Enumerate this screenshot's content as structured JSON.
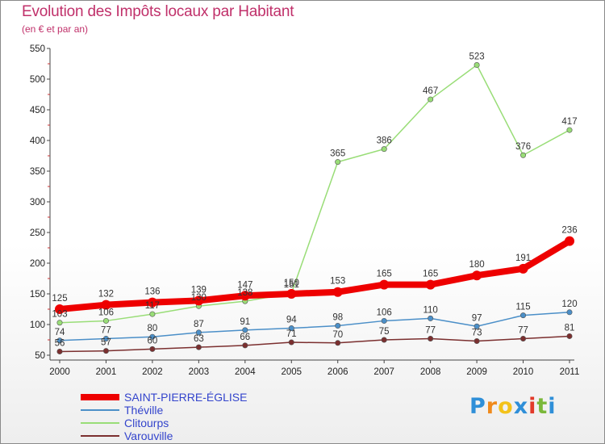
{
  "title": "Evolution des Impôts locaux par Habitant",
  "subtitle": "(en € et par an)",
  "logo": {
    "letters": [
      "P",
      "r",
      "o",
      "x",
      "i",
      "t",
      "i"
    ],
    "colors": [
      "#2f8fd8",
      "#f08a1c",
      "#f3c21a",
      "#2f8fd8",
      "#e23a2a",
      "#7ab83a",
      "#2f8fd8"
    ]
  },
  "chart_data": {
    "type": "line",
    "title": "Evolution des Impôts locaux par Habitant",
    "subtitle": "(en € et par an)",
    "xlabel": "",
    "ylabel": "",
    "categories": [
      "2000",
      "2001",
      "2002",
      "2003",
      "2004",
      "2005",
      "2006",
      "2007",
      "2008",
      "2009",
      "2010",
      "2011"
    ],
    "ylim": [
      50,
      550
    ],
    "yticks": [
      50,
      100,
      150,
      200,
      250,
      300,
      350,
      400,
      450,
      500,
      550
    ],
    "grid": false,
    "legend": "bottom-left",
    "series": [
      {
        "name": "SAINT-PIERRE-ÉGLISE",
        "color": "#ee0000",
        "width": 8,
        "values": [
          125,
          132,
          136,
          139,
          147,
          150,
          153,
          165,
          165,
          180,
          191,
          236
        ],
        "labels": [
          "125",
          "132",
          "136",
          "139",
          "147",
          "150",
          "153",
          "165",
          "165",
          "180",
          "191",
          "236"
        ]
      },
      {
        "name": "Théville",
        "color": "#4b8fc8",
        "width": 1.5,
        "values": [
          74,
          77,
          80,
          87,
          91,
          94,
          98,
          106,
          110,
          97,
          115,
          120
        ],
        "labels": [
          "74",
          "77",
          "80",
          "87",
          "91",
          "94",
          "98",
          "106",
          "110",
          "97",
          "115",
          "120"
        ]
      },
      {
        "name": "Clitourps",
        "color": "#99dd77",
        "width": 1.5,
        "values": [
          103,
          106,
          117,
          130,
          138,
          151,
          365,
          386,
          467,
          523,
          376,
          417
        ],
        "labels": [
          "103",
          "106",
          "117",
          "130",
          "138",
          "151",
          "365",
          "386",
          "467",
          "523",
          "376",
          "417"
        ]
      },
      {
        "name": "Varouville",
        "color": "#7b2f2f",
        "width": 1.5,
        "values": [
          56,
          57,
          60,
          63,
          66,
          71,
          70,
          75,
          77,
          73,
          77,
          81
        ],
        "labels": [
          "56",
          "57",
          "60",
          "63",
          "66",
          "71",
          "70",
          "75",
          "77",
          "73",
          "77",
          "81"
        ]
      }
    ]
  }
}
